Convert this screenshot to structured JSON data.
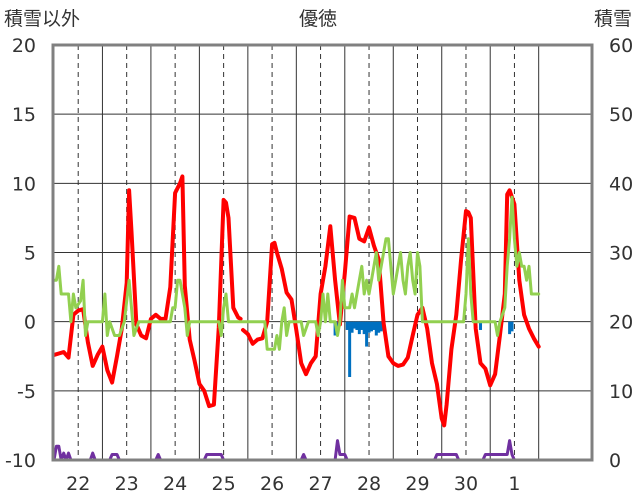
{
  "chart_data": {
    "type": "line",
    "title": "優徳",
    "ylabel_left": "積雪以外",
    "ylabel_right": "積雪",
    "ylim_left": [
      -10,
      20
    ],
    "ylim_right": [
      0,
      60
    ],
    "yticks_left": [
      "20",
      "15",
      "10",
      "5",
      "0",
      "-5",
      "-10"
    ],
    "yticks_right": [
      "60",
      "50",
      "40",
      "30",
      "20",
      "10",
      "0"
    ],
    "xlim": [
      21.48,
      32.6
    ],
    "day_labels": [
      {
        "x": 22,
        "label": "22"
      },
      {
        "x": 23,
        "label": "23"
      },
      {
        "x": 24,
        "label": "24"
      },
      {
        "x": 25,
        "label": "25"
      },
      {
        "x": 26,
        "label": "26"
      },
      {
        "x": 27,
        "label": "27"
      },
      {
        "x": 28,
        "label": "28"
      },
      {
        "x": 29,
        "label": "29"
      },
      {
        "x": 30,
        "label": "30"
      },
      {
        "x": 31,
        "label": "1"
      }
    ],
    "grid": true,
    "colors": {
      "frame": "#808080",
      "grid": "#333333",
      "red": "#ff0000",
      "green": "#92d050",
      "blue": "#0070c0",
      "purple": "#7030a0",
      "text": "#333333"
    },
    "series": [
      {
        "color": "#ff0000",
        "axis": "left",
        "points": [
          [
            21.5,
            -2.4
          ],
          [
            21.6,
            -2.3
          ],
          [
            21.7,
            -2.2
          ],
          [
            21.8,
            -2.6
          ],
          [
            21.9,
            0.5
          ],
          [
            22.0,
            0.8
          ],
          [
            22.1,
            0.9
          ],
          [
            22.2,
            -1.5
          ],
          [
            22.3,
            -3.2
          ],
          [
            22.4,
            -2.4
          ],
          [
            22.5,
            -1.8
          ],
          [
            22.6,
            -3.5
          ],
          [
            22.7,
            -4.4
          ],
          [
            22.8,
            -2.5
          ],
          [
            22.9,
            -0.5
          ],
          [
            23.0,
            2.8
          ],
          [
            23.05,
            9.5
          ],
          [
            23.1,
            6.5
          ],
          [
            23.2,
            -0.2
          ],
          [
            23.3,
            -1.0
          ],
          [
            23.4,
            -1.2
          ],
          [
            23.5,
            0.2
          ],
          [
            23.6,
            0.5
          ],
          [
            23.7,
            0.2
          ],
          [
            23.8,
            0.2
          ],
          [
            23.9,
            2.5
          ],
          [
            24.0,
            9.3
          ],
          [
            24.1,
            10.0
          ],
          [
            24.15,
            10.5
          ],
          [
            24.2,
            2.6
          ],
          [
            24.3,
            -1.3
          ],
          [
            24.4,
            -2.8
          ],
          [
            24.5,
            -4.5
          ],
          [
            24.6,
            -5.0
          ],
          [
            24.7,
            -6.1
          ],
          [
            24.8,
            -6.0
          ],
          [
            24.9,
            -0.4
          ],
          [
            25.0,
            8.8
          ],
          [
            25.05,
            8.6
          ],
          [
            25.1,
            7.5
          ],
          [
            25.2,
            1.0
          ],
          [
            25.3,
            0.3
          ],
          [
            25.35,
            0.2
          ]
        ]
      },
      {
        "color": "#ff0000",
        "axis": "left",
        "points": [
          [
            25.4,
            -0.6
          ],
          [
            25.5,
            -0.9
          ],
          [
            25.6,
            -1.6
          ],
          [
            25.7,
            -1.3
          ],
          [
            25.8,
            -1.2
          ],
          [
            25.9,
            0.0
          ],
          [
            26.0,
            5.6
          ],
          [
            26.05,
            5.7
          ],
          [
            26.1,
            5.0
          ],
          [
            26.2,
            3.8
          ],
          [
            26.3,
            2.1
          ],
          [
            26.4,
            1.6
          ],
          [
            26.5,
            -0.6
          ],
          [
            26.6,
            -3.0
          ],
          [
            26.7,
            -3.8
          ],
          [
            26.8,
            -3.0
          ],
          [
            26.9,
            -2.5
          ],
          [
            27.0,
            2.0
          ],
          [
            27.1,
            4.0
          ],
          [
            27.2,
            6.9
          ],
          [
            27.3,
            3.0
          ],
          [
            27.4,
            -0.2
          ],
          [
            27.5,
            3.5
          ],
          [
            27.6,
            7.6
          ],
          [
            27.7,
            7.5
          ],
          [
            27.8,
            6.0
          ],
          [
            27.9,
            5.8
          ],
          [
            28.0,
            6.8
          ],
          [
            28.1,
            5.5
          ],
          [
            28.2,
            4.5
          ],
          [
            28.3,
            -0.1
          ],
          [
            28.4,
            -2.5
          ],
          [
            28.5,
            -3.0
          ],
          [
            28.6,
            -3.2
          ],
          [
            28.7,
            -3.1
          ],
          [
            28.8,
            -2.6
          ],
          [
            28.9,
            -1.0
          ],
          [
            29.0,
            0.5
          ],
          [
            29.1,
            1.0
          ],
          [
            29.2,
            -0.5
          ],
          [
            29.3,
            -3.0
          ],
          [
            29.4,
            -4.5
          ],
          [
            29.5,
            -7.0
          ],
          [
            29.55,
            -7.5
          ],
          [
            29.6,
            -6.0
          ],
          [
            29.7,
            -2.0
          ],
          [
            29.8,
            0.5
          ],
          [
            29.9,
            4.5
          ],
          [
            30.0,
            8.0
          ],
          [
            30.05,
            7.9
          ],
          [
            30.1,
            7.5
          ],
          [
            30.2,
            -0.5
          ],
          [
            30.3,
            -3.0
          ],
          [
            30.4,
            -3.4
          ],
          [
            30.5,
            -4.6
          ],
          [
            30.6,
            -3.8
          ],
          [
            30.7,
            -1.0
          ],
          [
            30.8,
            2.0
          ],
          [
            30.85,
            9.2
          ],
          [
            30.9,
            9.5
          ],
          [
            31.0,
            8.5
          ],
          [
            31.1,
            3.0
          ],
          [
            31.2,
            0.5
          ],
          [
            31.3,
            -0.5
          ],
          [
            31.4,
            -1.2
          ],
          [
            31.5,
            -1.8
          ]
        ]
      },
      {
        "color": "#92d050",
        "axis": "left",
        "points": [
          [
            21.5,
            3.0
          ],
          [
            21.55,
            3.0
          ],
          [
            21.6,
            4.0
          ],
          [
            21.65,
            2.0
          ],
          [
            21.8,
            2.0
          ],
          [
            21.85,
            0.0
          ],
          [
            21.9,
            2.0
          ],
          [
            21.95,
            1.0
          ],
          [
            22.05,
            1.5
          ],
          [
            22.1,
            3.0
          ],
          [
            22.15,
            -1.0
          ],
          [
            22.2,
            0.0
          ],
          [
            22.5,
            0.0
          ],
          [
            22.55,
            2.0
          ],
          [
            22.6,
            -1.0
          ],
          [
            22.65,
            0.0
          ],
          [
            22.75,
            -1.0
          ],
          [
            22.85,
            -1.0
          ],
          [
            22.95,
            0.0
          ],
          [
            23.0,
            1.5
          ],
          [
            23.05,
            3.0
          ],
          [
            23.15,
            -1.0
          ],
          [
            23.25,
            0.0
          ],
          [
            23.9,
            0.0
          ],
          [
            23.95,
            1.0
          ],
          [
            24.0,
            1.0
          ],
          [
            24.05,
            3.0
          ],
          [
            24.1,
            3.0
          ],
          [
            24.15,
            2.0
          ],
          [
            24.2,
            1.0
          ],
          [
            24.25,
            -1.0
          ],
          [
            24.3,
            0.0
          ],
          [
            24.9,
            0.0
          ],
          [
            24.95,
            -1.0
          ],
          [
            25.0,
            1.0
          ],
          [
            25.05,
            2.0
          ],
          [
            25.1,
            0.0
          ],
          [
            25.85,
            0.0
          ],
          [
            25.9,
            -2.0
          ],
          [
            26.05,
            -2.0
          ],
          [
            26.1,
            -1.0
          ],
          [
            26.15,
            -2.0
          ],
          [
            26.2,
            0.0
          ],
          [
            26.25,
            1.0
          ],
          [
            26.3,
            -1.0
          ],
          [
            26.35,
            0.0
          ],
          [
            26.6,
            0.0
          ],
          [
            26.65,
            -1.0
          ],
          [
            26.75,
            0.0
          ],
          [
            26.9,
            0.0
          ],
          [
            26.95,
            -1.0
          ],
          [
            27.0,
            0.0
          ],
          [
            27.05,
            2.0
          ],
          [
            27.1,
            0.0
          ],
          [
            27.15,
            2.0
          ],
          [
            27.2,
            0.0
          ],
          [
            27.3,
            0.0
          ],
          [
            27.35,
            -1.0
          ],
          [
            27.4,
            0.0
          ],
          [
            27.45,
            3.0
          ],
          [
            27.5,
            1.0
          ],
          [
            27.6,
            1.0
          ],
          [
            27.65,
            2.0
          ],
          [
            27.7,
            1.0
          ],
          [
            27.75,
            2.0
          ],
          [
            27.8,
            3.0
          ],
          [
            27.85,
            4.0
          ],
          [
            27.9,
            2.0
          ],
          [
            27.95,
            3.0
          ],
          [
            28.0,
            2.0
          ],
          [
            28.05,
            3.0
          ],
          [
            28.1,
            4.0
          ],
          [
            28.15,
            5.0
          ],
          [
            28.2,
            3.0
          ],
          [
            28.25,
            4.0
          ],
          [
            28.3,
            5.0
          ],
          [
            28.35,
            6.0
          ],
          [
            28.4,
            6.0
          ],
          [
            28.45,
            4.0
          ],
          [
            28.5,
            2.0
          ],
          [
            28.55,
            3.0
          ],
          [
            28.6,
            4.0
          ],
          [
            28.65,
            5.0
          ],
          [
            28.7,
            3.0
          ],
          [
            28.75,
            2.0
          ],
          [
            28.8,
            4.0
          ],
          [
            28.85,
            5.0
          ],
          [
            28.9,
            3.0
          ],
          [
            28.95,
            2.0
          ],
          [
            29.0,
            5.0
          ],
          [
            29.05,
            4.0
          ],
          [
            29.1,
            0.0
          ],
          [
            29.95,
            0.0
          ],
          [
            30.0,
            2.0
          ],
          [
            30.05,
            6.0
          ],
          [
            30.1,
            2.0
          ],
          [
            30.15,
            0.0
          ],
          [
            30.6,
            0.0
          ],
          [
            30.65,
            -1.0
          ],
          [
            30.7,
            0.0
          ],
          [
            30.8,
            1.0
          ],
          [
            30.85,
            4.0
          ],
          [
            30.9,
            6.0
          ],
          [
            30.95,
            9.0
          ],
          [
            31.0,
            6.0
          ],
          [
            31.05,
            4.0
          ],
          [
            31.1,
            5.0
          ],
          [
            31.15,
            4.0
          ],
          [
            31.2,
            4.0
          ],
          [
            31.25,
            3.0
          ],
          [
            31.3,
            4.0
          ],
          [
            31.35,
            2.0
          ],
          [
            31.45,
            2.0
          ],
          [
            31.5,
            2.0
          ]
        ]
      },
      {
        "color": "#7030a0",
        "axis": "left",
        "points": [
          [
            21.5,
            -10.0
          ],
          [
            21.55,
            -9.0
          ],
          [
            21.6,
            -9.0
          ],
          [
            21.65,
            -10.0
          ],
          [
            21.7,
            -9.5
          ],
          [
            21.75,
            -10.0
          ],
          [
            21.8,
            -9.5
          ],
          [
            21.85,
            -10.0
          ],
          [
            22.25,
            -10.0
          ],
          [
            22.3,
            -9.5
          ],
          [
            22.35,
            -10.0
          ],
          [
            22.65,
            -10.0
          ],
          [
            22.7,
            -9.6
          ],
          [
            22.8,
            -9.6
          ],
          [
            22.85,
            -10.0
          ],
          [
            23.6,
            -10.0
          ],
          [
            23.65,
            -9.6
          ],
          [
            23.7,
            -10.0
          ],
          [
            24.6,
            -10.0
          ],
          [
            24.65,
            -9.6
          ],
          [
            24.95,
            -9.6
          ],
          [
            25.0,
            -10.0
          ],
          [
            26.6,
            -10.0
          ],
          [
            26.65,
            -9.6
          ],
          [
            26.7,
            -10.0
          ],
          [
            27.3,
            -10.0
          ],
          [
            27.35,
            -8.6
          ],
          [
            27.4,
            -9.6
          ],
          [
            27.5,
            -9.6
          ],
          [
            27.55,
            -10.0
          ],
          [
            29.35,
            -10.0
          ],
          [
            29.4,
            -9.6
          ],
          [
            29.8,
            -9.6
          ],
          [
            29.85,
            -10.0
          ],
          [
            30.35,
            -10.0
          ],
          [
            30.4,
            -9.6
          ],
          [
            30.85,
            -9.6
          ],
          [
            30.9,
            -8.6
          ],
          [
            30.95,
            -9.6
          ],
          [
            31.0,
            -10.0
          ],
          [
            31.5,
            -10.0
          ]
        ]
      }
    ],
    "bars": {
      "color": "#0070c0",
      "axis": "left",
      "base": 0,
      "items": [
        [
          27.3,
          -1.0
        ],
        [
          27.35,
          -0.4
        ],
        [
          27.55,
          -0.6
        ],
        [
          27.6,
          -4.0
        ],
        [
          27.65,
          -0.8
        ],
        [
          27.7,
          -0.5
        ],
        [
          27.75,
          -0.6
        ],
        [
          27.8,
          -0.9
        ],
        [
          27.85,
          -0.6
        ],
        [
          27.9,
          -0.9
        ],
        [
          27.95,
          -1.8
        ],
        [
          28.0,
          -0.8
        ],
        [
          28.05,
          -0.7
        ],
        [
          28.1,
          -0.6
        ],
        [
          28.15,
          -1.0
        ],
        [
          28.2,
          -0.8
        ],
        [
          28.25,
          -0.7
        ],
        [
          30.3,
          -0.6
        ],
        [
          30.9,
          -0.9
        ],
        [
          30.95,
          -0.7
        ]
      ]
    }
  }
}
